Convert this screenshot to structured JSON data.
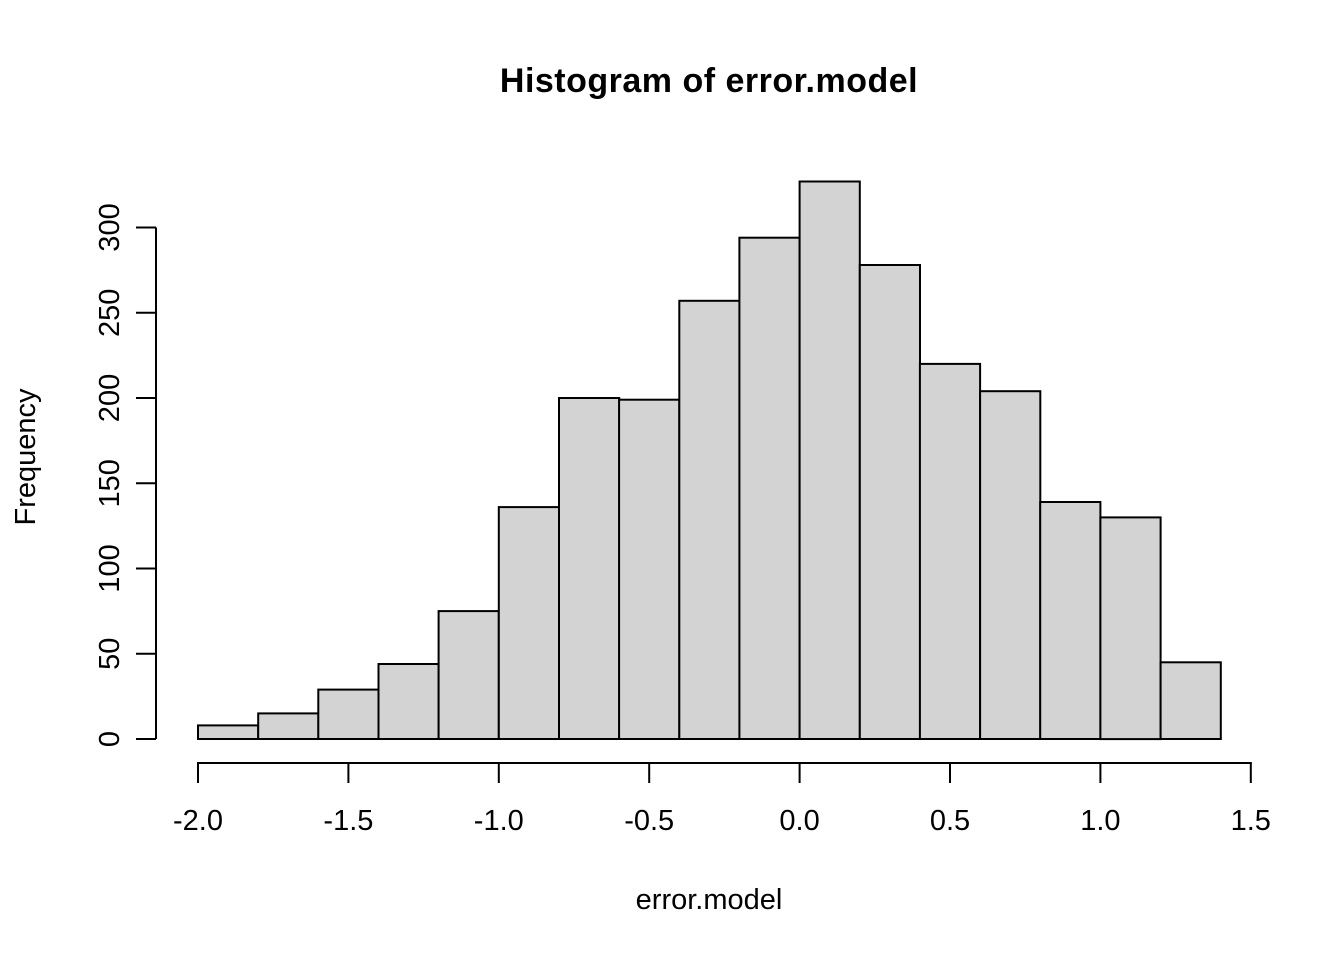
{
  "figure": {
    "background_color": "#FFFFFF"
  },
  "chart_data": {
    "type": "bar",
    "subtype": "histogram",
    "title": "Histogram of error.model",
    "xlabel": "error.model",
    "ylabel": "Frequency",
    "bin_start": -2.0,
    "bin_width": 0.2,
    "bin_edges": [
      -2.0,
      -1.8,
      -1.6,
      -1.4,
      -1.2,
      -1.0,
      -0.8,
      -0.6,
      -0.4,
      -0.2,
      0.0,
      0.2,
      0.4,
      0.6,
      0.8,
      1.0,
      1.2,
      1.4
    ],
    "frequencies": [
      8,
      15,
      29,
      44,
      75,
      136,
      200,
      199,
      257,
      294,
      327,
      278,
      220,
      204,
      139,
      130,
      45
    ],
    "x_ticks": [
      -2.0,
      -1.5,
      -1.0,
      -0.5,
      0.0,
      0.5,
      1.0,
      1.5
    ],
    "x_tick_labels": [
      "-2.0",
      "-1.5",
      "-1.0",
      "-0.5",
      "0.0",
      "0.5",
      "1.0",
      "1.5"
    ],
    "y_ticks": [
      0,
      50,
      100,
      150,
      200,
      250,
      300
    ],
    "y_tick_labels": [
      "0",
      "50",
      "100",
      "150",
      "200",
      "250",
      "300"
    ],
    "xlim": [
      -2.0,
      1.5
    ],
    "ylim": [
      0,
      327
    ],
    "grid": false,
    "legend_position": "none",
    "bar_fill_color": "#D3D3D3",
    "bar_border_color": "#000000",
    "axis_color": "#000000",
    "text_color": "#000000"
  }
}
